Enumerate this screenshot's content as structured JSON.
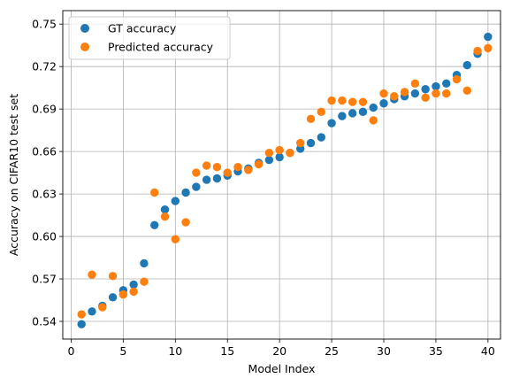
{
  "chart_data": {
    "type": "scatter",
    "title": "",
    "xlabel": "Model Index",
    "ylabel": "Accuracy on CIFAR10 test set",
    "xlim": [
      -0.8,
      41.2
    ],
    "ylim": [
      0.5275,
      0.7595
    ],
    "xticks": [
      0,
      5,
      10,
      15,
      20,
      25,
      30,
      35,
      40
    ],
    "xtick_labels": [
      "0",
      "5",
      "10",
      "15",
      "20",
      "25",
      "30",
      "35",
      "40"
    ],
    "yticks": [
      0.54,
      0.57,
      0.6,
      0.63,
      0.66,
      0.69,
      0.72,
      0.75
    ],
    "ytick_labels": [
      "0.54",
      "0.57",
      "0.60",
      "0.63",
      "0.66",
      "0.69",
      "0.72",
      "0.75"
    ],
    "grid": true,
    "legend_position": "top-left",
    "x": [
      1,
      2,
      3,
      4,
      5,
      6,
      7,
      8,
      9,
      10,
      11,
      12,
      13,
      14,
      15,
      16,
      17,
      18,
      19,
      20,
      21,
      22,
      23,
      24,
      25,
      26,
      27,
      28,
      29,
      30,
      31,
      32,
      33,
      34,
      35,
      36,
      37,
      38,
      39,
      40
    ],
    "series": [
      {
        "name": "GT accuracy",
        "color": "#1f77b4",
        "values": [
          0.538,
          0.547,
          0.551,
          0.557,
          0.562,
          0.566,
          0.581,
          0.608,
          0.619,
          0.625,
          0.631,
          0.635,
          0.64,
          0.641,
          0.643,
          0.646,
          0.648,
          0.652,
          0.654,
          0.656,
          0.659,
          0.662,
          0.666,
          0.67,
          0.68,
          0.685,
          0.687,
          0.688,
          0.691,
          0.694,
          0.697,
          0.699,
          0.701,
          0.704,
          0.706,
          0.708,
          0.714,
          0.721,
          0.729,
          0.741
        ]
      },
      {
        "name": "Predicted accuracy",
        "color": "#ff7f0e",
        "values": [
          0.545,
          0.573,
          0.55,
          0.572,
          0.559,
          0.561,
          0.568,
          0.631,
          0.614,
          0.598,
          0.61,
          0.645,
          0.65,
          0.649,
          0.645,
          0.649,
          0.647,
          0.651,
          0.659,
          0.661,
          0.659,
          0.666,
          0.683,
          0.688,
          0.696,
          0.696,
          0.695,
          0.695,
          0.682,
          0.701,
          0.699,
          0.702,
          0.708,
          0.698,
          0.701,
          0.701,
          0.711,
          0.703,
          0.731,
          0.733
        ]
      }
    ]
  }
}
